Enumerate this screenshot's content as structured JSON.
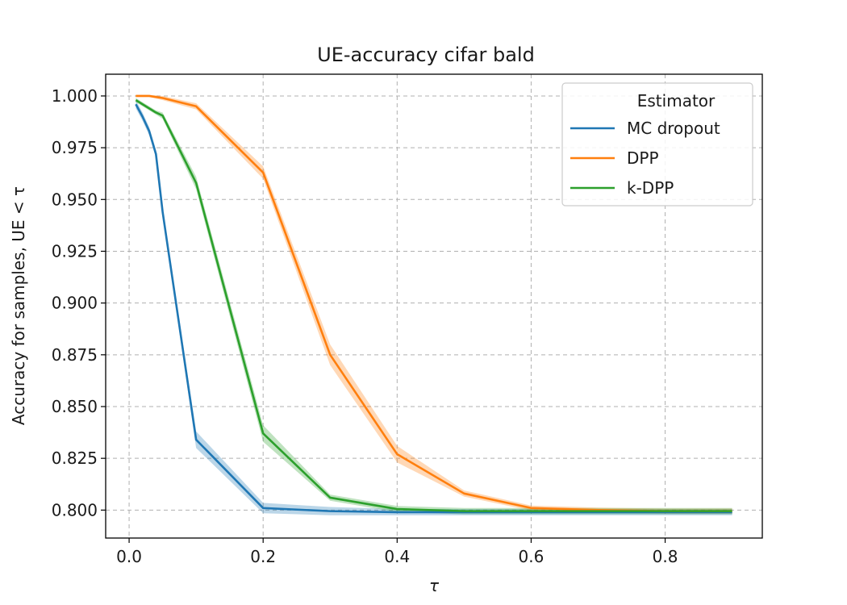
{
  "chart_data": {
    "type": "line",
    "title": "UE-accuracy cifar bald",
    "xlabel": "τ",
    "ylabel": "Accuracy for samples, UE < τ",
    "xlim": [
      -0.035,
      0.945
    ],
    "ylim": [
      0.7865,
      1.0105
    ],
    "xticks": [
      0.0,
      0.2,
      0.4,
      0.6,
      0.8
    ],
    "xtick_labels": [
      "0.0",
      "0.2",
      "0.4",
      "0.6",
      "0.8"
    ],
    "yticks": [
      0.8,
      0.825,
      0.85,
      0.875,
      0.9,
      0.925,
      0.95,
      0.975,
      1.0
    ],
    "ytick_labels": [
      "0.800",
      "0.825",
      "0.850",
      "0.875",
      "0.900",
      "0.925",
      "0.950",
      "0.975",
      "1.000"
    ],
    "grid": true,
    "legend": {
      "title": "Estimator",
      "placement": "top-right"
    },
    "series": [
      {
        "name": "MC dropout",
        "color": "#1f77b4",
        "x": [
          0.01,
          0.02,
          0.03,
          0.04,
          0.05,
          0.1,
          0.2,
          0.3,
          0.4,
          0.5,
          0.6,
          0.7,
          0.8,
          0.9
        ],
        "y": [
          0.996,
          0.99,
          0.983,
          0.972,
          0.944,
          0.834,
          0.801,
          0.7995,
          0.799,
          0.799,
          0.799,
          0.799,
          0.799,
          0.799
        ],
        "band": [
          0.002,
          0.002,
          0.002,
          0.002,
          0.002,
          0.004,
          0.0025,
          0.002,
          0.0015,
          0.0015,
          0.0015,
          0.0015,
          0.0015,
          0.0015
        ]
      },
      {
        "name": "DPP",
        "color": "#ff7f0e",
        "x": [
          0.01,
          0.02,
          0.03,
          0.04,
          0.05,
          0.1,
          0.2,
          0.3,
          0.4,
          0.5,
          0.6,
          0.7,
          0.8,
          0.9
        ],
        "y": [
          1.0,
          1.0,
          1.0,
          0.9995,
          0.999,
          0.995,
          0.963,
          0.875,
          0.827,
          0.808,
          0.801,
          0.8,
          0.7995,
          0.7995
        ],
        "band": [
          0.0005,
          0.0005,
          0.0005,
          0.0008,
          0.001,
          0.0015,
          0.003,
          0.005,
          0.004,
          0.0015,
          0.0012,
          0.0012,
          0.0012,
          0.0012
        ]
      },
      {
        "name": "k-DPP",
        "color": "#2ca02c",
        "x": [
          0.01,
          0.02,
          0.03,
          0.04,
          0.05,
          0.1,
          0.2,
          0.3,
          0.4,
          0.5,
          0.6,
          0.7,
          0.8,
          0.9
        ],
        "y": [
          0.998,
          0.996,
          0.994,
          0.992,
          0.9905,
          0.958,
          0.837,
          0.806,
          0.8005,
          0.7995,
          0.7995,
          0.7995,
          0.7995,
          0.7995
        ],
        "band": [
          0.001,
          0.001,
          0.001,
          0.001,
          0.0015,
          0.003,
          0.004,
          0.0015,
          0.0015,
          0.0015,
          0.0015,
          0.0015,
          0.0015,
          0.0015
        ]
      }
    ]
  }
}
